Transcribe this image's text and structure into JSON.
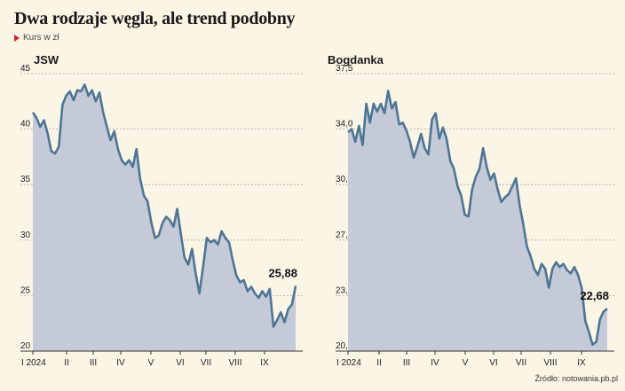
{
  "header": {
    "title": "Dwa rodzaje węgla, ale trend podobny",
    "subtitle": "Kurs w zł"
  },
  "source": "Źródło: notowania.pb.pl",
  "colors": {
    "line": "#4d7594",
    "area": "#c5cad8",
    "grid": "#a8a8a8",
    "marker": "#d6262d"
  },
  "chart_data": [
    {
      "type": "area",
      "title": "JSW",
      "x_ticks": [
        "I 2024",
        "II",
        "III",
        "IV",
        "V",
        "VI",
        "VII",
        "VIII",
        "IX"
      ],
      "y_ticks": [
        "45",
        "40",
        "35",
        "30",
        "25",
        "20"
      ],
      "ylim": [
        20,
        45
      ],
      "last_label": "25,88",
      "values": [
        41.5,
        41.0,
        40.2,
        40.8,
        39.6,
        38.0,
        37.8,
        38.4,
        42.2,
        43.0,
        43.4,
        42.6,
        43.5,
        43.4,
        44.0,
        43.0,
        43.5,
        42.5,
        43.3,
        41.5,
        40.2,
        39.0,
        39.8,
        38.2,
        37.2,
        36.8,
        37.2,
        36.6,
        38.2,
        35.5,
        34.0,
        33.5,
        31.6,
        30.2,
        30.4,
        31.5,
        32.1,
        31.8,
        31.2,
        32.8,
        30.5,
        28.4,
        27.8,
        29.2,
        27.0,
        25.2,
        27.6,
        30.2,
        29.8,
        30.0,
        29.6,
        30.8,
        30.2,
        29.8,
        28.2,
        26.8,
        26.2,
        26.4,
        25.4,
        25.8,
        25.2,
        24.8,
        25.4,
        24.9,
        25.6,
        22.2,
        22.8,
        23.5,
        22.6,
        23.8,
        24.2,
        25.88
      ]
    },
    {
      "type": "area",
      "title": "Bogdanka",
      "x_ticks": [
        "I 2024",
        "II",
        "III",
        "IV",
        "V",
        "VI",
        "VII",
        "VIII",
        "IX"
      ],
      "y_ticks": [
        "37,5",
        "34,0",
        "30,5",
        "27,0",
        "23,5",
        "20,0"
      ],
      "ylim": [
        20,
        37.5
      ],
      "last_label": "22,68",
      "values": [
        33.8,
        34.0,
        33.2,
        34.2,
        33.0,
        35.6,
        34.4,
        35.6,
        35.1,
        35.6,
        35.0,
        36.4,
        35.3,
        35.7,
        34.3,
        34.4,
        33.9,
        33.2,
        32.2,
        32.9,
        33.7,
        32.8,
        32.4,
        34.6,
        35.0,
        33.4,
        34.1,
        33.4,
        32.0,
        31.5,
        30.4,
        29.8,
        28.6,
        28.5,
        30.2,
        31.0,
        31.5,
        32.8,
        31.6,
        30.8,
        31.2,
        30.2,
        29.4,
        29.7,
        29.9,
        30.4,
        30.9,
        29.2,
        28.0,
        26.6,
        26.0,
        25.2,
        24.8,
        25.5,
        25.2,
        24.0,
        25.2,
        25.6,
        25.3,
        25.5,
        25.1,
        24.9,
        25.3,
        24.8,
        24.0,
        21.9,
        21.2,
        20.4,
        20.6,
        22.0,
        22.5,
        22.68
      ]
    }
  ]
}
